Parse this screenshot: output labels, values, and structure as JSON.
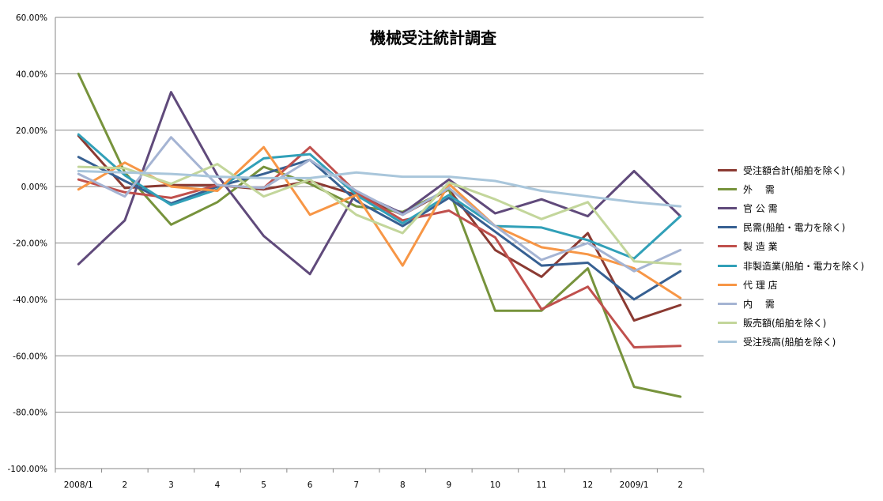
{
  "chart_data": {
    "type": "line",
    "title": "機械受注統計調査",
    "xlabel": "",
    "ylabel": "",
    "ylim": [
      -100,
      60
    ],
    "yticks": [
      "60.00%",
      "40.00%",
      "20.00%",
      "0.00%",
      "-20.00%",
      "-40.00%",
      "-60.00%",
      "-80.00%",
      "-100.00%"
    ],
    "ytick_values": [
      60,
      40,
      20,
      0,
      -20,
      -40,
      -60,
      -80,
      -100
    ],
    "categories": [
      "2008/1",
      "2",
      "3",
      "4",
      "5",
      "6",
      "7",
      "8",
      "9",
      "10",
      "11",
      "12",
      "2009/1",
      "2"
    ],
    "grid": true,
    "legend_position": "right",
    "series": [
      {
        "name": "受注額合計(船舶を除く)",
        "color": "#8B3A32",
        "values": [
          18,
          -0.5,
          0.5,
          0.5,
          -1,
          2,
          -3,
          -10,
          -1,
          -22.5,
          -32,
          -16.5,
          -47.5,
          -42
        ]
      },
      {
        "name": "外　 需",
        "color": "#77933C",
        "values": [
          40,
          5,
          -13.5,
          -5.5,
          7,
          1,
          -7,
          -9,
          -1,
          -44,
          -44,
          -29,
          -71,
          -74.5
        ]
      },
      {
        "name": "官 公 需",
        "color": "#604A7B",
        "values": [
          -27.5,
          -12,
          33.5,
          4,
          -17.5,
          -31,
          -2,
          -9.5,
          2.5,
          -9.5,
          -4.5,
          -10.5,
          5.5,
          -10.5
        ]
      },
      {
        "name": "民需(船舶・電力を除く)",
        "color": "#376092",
        "values": [
          10.5,
          2,
          -6,
          0,
          4.5,
          9.5,
          -5,
          -14,
          -4,
          -16,
          -28,
          -27,
          -40,
          -30
        ]
      },
      {
        "name": "製 造 業",
        "color": "#C0504D",
        "values": [
          2.5,
          -2,
          -4,
          0.5,
          -0.5,
          14,
          -2,
          -12,
          -8.5,
          -18,
          -43.5,
          -35.5,
          -57,
          -56.5
        ]
      },
      {
        "name": "非製造業(船舶・電力を除く)",
        "color": "#31A0B8",
        "values": [
          18.5,
          4,
          -6.5,
          -1,
          10,
          11.5,
          -3,
          -13,
          -3,
          -14,
          -14.5,
          -19,
          -25.5,
          -10.5
        ]
      },
      {
        "name": "代 理 店",
        "color": "#F79646",
        "values": [
          -1,
          8.5,
          0,
          -1.5,
          14,
          -10,
          -3,
          -28,
          1,
          -14,
          -21.5,
          -24,
          -29,
          -39.5
        ]
      },
      {
        "name": "内　 需",
        "color": "#A5B4D3",
        "values": [
          4.5,
          -3.5,
          17.5,
          0.5,
          -0.5,
          9.5,
          -1.5,
          -10,
          -0.5,
          -14,
          -26,
          -20,
          -30,
          -22.5
        ]
      },
      {
        "name": "販売額(船舶を除く)",
        "color": "#C3D69B",
        "values": [
          7,
          6.5,
          1,
          8,
          -3.5,
          2.5,
          -10,
          -16.5,
          1.5,
          -4.5,
          -11.5,
          -5.5,
          -26.5,
          -27.5
        ]
      },
      {
        "name": "受注残高(船舶を除く)",
        "color": "#A9C6DB",
        "values": [
          5.5,
          5,
          4.5,
          3.5,
          3,
          3,
          5,
          3.5,
          3.5,
          2,
          -1.5,
          -3.5,
          -5.5,
          -7
        ]
      }
    ]
  }
}
